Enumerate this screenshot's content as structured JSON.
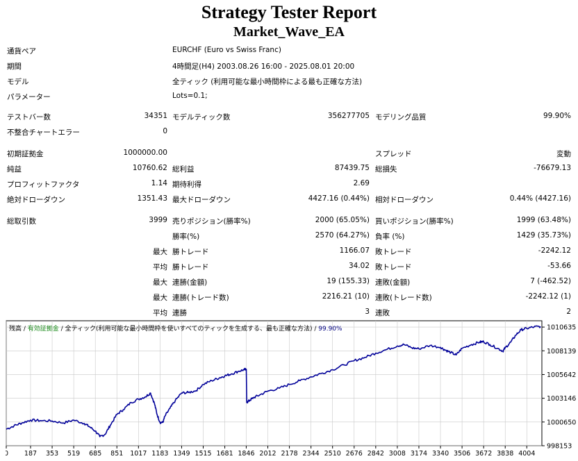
{
  "header": {
    "title": "Strategy Tester Report",
    "ea_name": "Market_Wave_EA"
  },
  "settings": [
    {
      "label": "通貨ペア",
      "value": "EURCHF (Euro vs Swiss Franc)"
    },
    {
      "label": "期間",
      "value": "4時間足(H4) 2003.08.26 16:00 - 2025.08.01 20:00"
    },
    {
      "label": "モデル",
      "value": "全ティック (利用可能な最小時間枠による最も正確な方法)"
    },
    {
      "label": "パラメーター",
      "value": "Lots=0.1;"
    }
  ],
  "stats": {
    "bars_label": "テストバー数",
    "bars": "34351",
    "ticks_label": "モデルティック数",
    "ticks": "356277705",
    "quality_label": "モデリング品質",
    "quality": "99.90%",
    "mismatch_label": "不整合チャートエラー",
    "mismatch": "0",
    "deposit_label": "初期証拠金",
    "deposit": "1000000.00",
    "spread_label": "スプレッド",
    "spread": "変動",
    "net_label": "純益",
    "net": "10760.62",
    "gross_profit_label": "総利益",
    "gross_profit": "87439.75",
    "gross_loss_label": "総損失",
    "gross_loss": "-76679.13",
    "pf_label": "プロフィットファクタ",
    "pf": "1.14",
    "expected_label": "期待利得",
    "expected": "2.69",
    "abs_dd_label": "絶対ドローダウン",
    "abs_dd": "1351.43",
    "max_dd_label": "最大ドローダウン",
    "max_dd": "4427.16 (0.44%)",
    "rel_dd_label": "相対ドローダウン",
    "rel_dd": "0.44% (4427.16)",
    "total_trades_label": "総取引数",
    "total_trades": "3999",
    "short_label": "売りポジション(勝率%)",
    "short": "2000 (65.05%)",
    "long_label": "買いポジション(勝率%)",
    "long": "1999 (63.48%)",
    "win_rate_label": "勝率(%)",
    "win_rate": "2570 (64.27%)",
    "loss_rate_label": "負率 (%)",
    "loss_rate": "1429 (35.73%)",
    "max_label": "最大",
    "avg_label": "平均",
    "win_trade_label": "勝トレード",
    "loss_trade_label": "敗トレード",
    "max_win": "1166.07",
    "max_loss": "-2242.12",
    "avg_win": "34.02",
    "avg_loss": "-53.66",
    "cons_win_amount_label": "連勝(金額)",
    "cons_loss_amount_label": "連敗(金額)",
    "max_cons_win_amount": "19 (155.33)",
    "max_cons_loss_amount": "7 (-462.52)",
    "cons_win_count_label": "連勝(トレード数)",
    "cons_loss_count_label": "連敗(トレード数)",
    "max_cons_win_count": "2216.21 (10)",
    "max_cons_loss_count": "-2242.12 (1)",
    "cons_win_label": "連勝",
    "cons_loss_label": "連敗",
    "avg_cons_win": "3",
    "avg_cons_loss": "2"
  },
  "chart_legend": {
    "balance": "残高",
    "sep1": " / ",
    "equity": "有効証拠金",
    "sep2": " / ",
    "model": "全ティック(利用可能な最小時間枠を使いすべてのティックを生成する、最も正確な方法)",
    "sep3": " / ",
    "quality": "99.90%"
  },
  "chart_data": {
    "type": "line",
    "x_ticks": [
      "0",
      "187",
      "353",
      "519",
      "685",
      "851",
      "1017",
      "1183",
      "1349",
      "1515",
      "1681",
      "1846",
      "2012",
      "2178",
      "2344",
      "2510",
      "2676",
      "2842",
      "3008",
      "3174",
      "3340",
      "3506",
      "3672",
      "3838",
      "4004"
    ],
    "y_ticks": [
      "1010635",
      "1008139",
      "1005642",
      "1003146",
      "1000650",
      "998153"
    ],
    "ylim": [
      998153,
      1011300
    ],
    "xlim": [
      0,
      4120
    ],
    "colors": {
      "line": "#000099",
      "grid": "#c8c8c8",
      "border": "#000000"
    },
    "series": [
      {
        "x": [
          0,
          60,
          120,
          187,
          260,
          353,
          440,
          519,
          600,
          640,
          685,
          720,
          760,
          800,
          851,
          900,
          960,
          1017,
          1070,
          1110,
          1140,
          1160,
          1183,
          1205,
          1220,
          1260,
          1300,
          1349,
          1400,
          1460,
          1515,
          1580,
          1640,
          1681,
          1730,
          1790,
          1830,
          1846,
          1850,
          1875,
          1900,
          1950,
          2012,
          2100,
          2178,
          2260,
          2344,
          2420,
          2510,
          2600,
          2676,
          2760,
          2842,
          2920,
          3008,
          3060,
          3120,
          3174,
          3260,
          3340,
          3380,
          3420,
          3460,
          3506,
          3580,
          3640,
          3672,
          3720,
          3780,
          3820,
          3838,
          3880,
          3920,
          3960,
          4004,
          4060,
          4110
        ],
        "y": [
          999900,
          1000250,
          1000550,
          1000850,
          1000800,
          1000750,
          1000550,
          1000850,
          1000500,
          1000150,
          999700,
          999100,
          999350,
          1000300,
          1001450,
          1001950,
          1002700,
          1003050,
          1003300,
          1003700,
          1002600,
          1001450,
          1000600,
          1000600,
          1001250,
          1002100,
          1002900,
          1003700,
          1003750,
          1003950,
          1004600,
          1005000,
          1005300,
          1005500,
          1005700,
          1006000,
          1006150,
          1006200,
          1002700,
          1002950,
          1003200,
          1003500,
          1003900,
          1004200,
          1004600,
          1005000,
          1005400,
          1005750,
          1006150,
          1006650,
          1007100,
          1007450,
          1007900,
          1008250,
          1008650,
          1008800,
          1008450,
          1008350,
          1008700,
          1008500,
          1008200,
          1007950,
          1007700,
          1008400,
          1008800,
          1009050,
          1009100,
          1008800,
          1008400,
          1008100,
          1008450,
          1009050,
          1009800,
          1010350,
          1010500,
          1010650,
          1010700
        ]
      }
    ]
  }
}
